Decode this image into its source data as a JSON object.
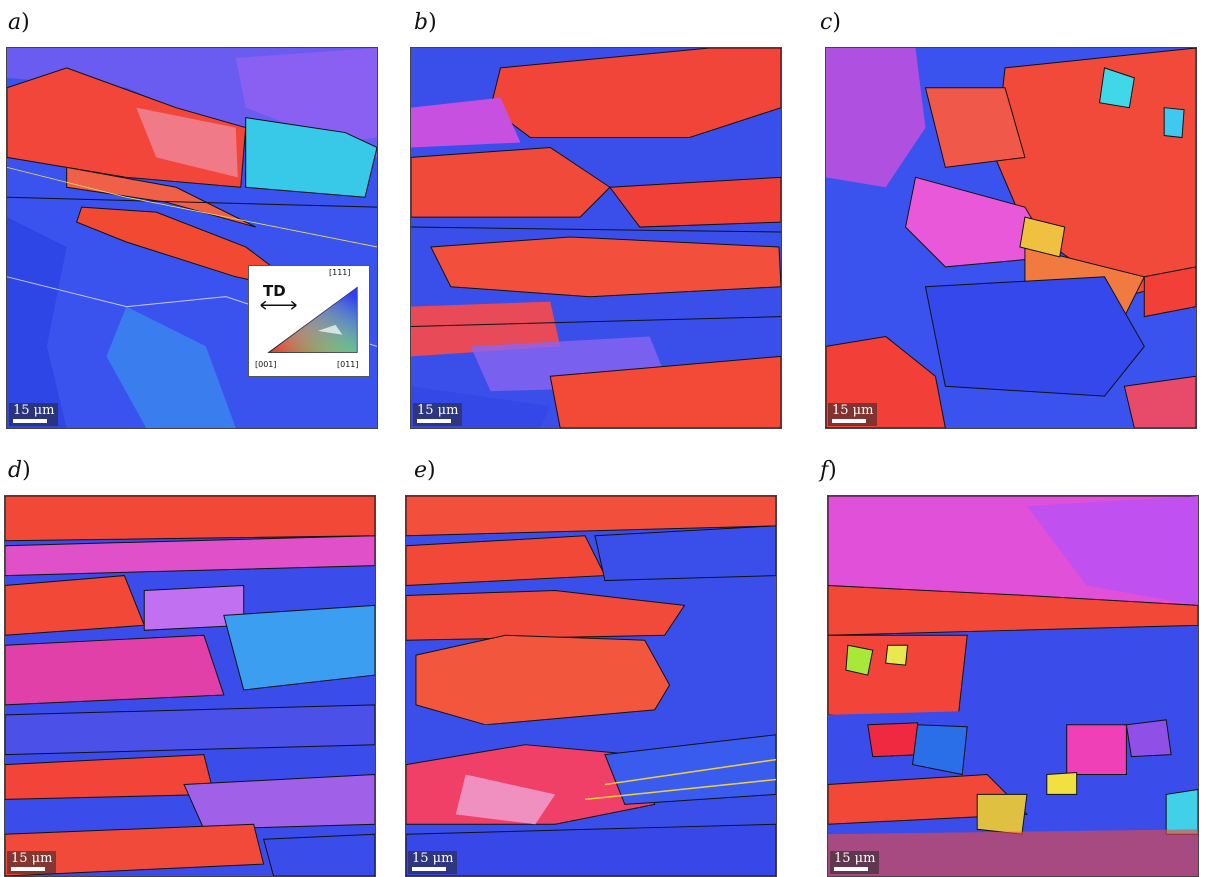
{
  "panels": [
    {
      "label": "a",
      "scale": "15 μm"
    },
    {
      "label": "b",
      "scale": "15 μm"
    },
    {
      "label": "c",
      "scale": "15 μm"
    },
    {
      "label": "d",
      "scale": "15 μm"
    },
    {
      "label": "e",
      "scale": "15 μm"
    },
    {
      "label": "f",
      "scale": "15 μm"
    }
  ],
  "legend": {
    "direction": "TD",
    "corner_001": "[001]",
    "corner_011": "[011]",
    "corner_111": "[111]"
  },
  "colors": {
    "red_001": "#f03a2a",
    "blue_111": "#3a4ff0",
    "green_011": "#38e038",
    "magenta": "#d84ad8",
    "boundary": "#111111",
    "lagb": "#e8e8e8"
  }
}
